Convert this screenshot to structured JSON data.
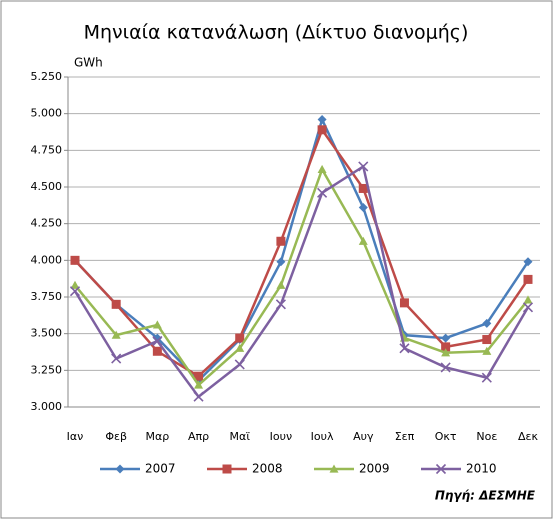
{
  "chart_data": {
    "type": "line",
    "title": "Μηνιαία κατανάλωση (Δίκτυο διανομής)",
    "y_label": "GWh",
    "source": "Πηγή: ΔΕΣΜΗΕ",
    "categories": [
      "Ιαν",
      "Φεβ",
      "Μαρ",
      "Απρ",
      "Μαϊ",
      "Ιουν",
      "Ιουλ",
      "Αυγ",
      "Σεπ",
      "Οκτ",
      "Νοε",
      "Δεκ"
    ],
    "series": [
      {
        "name": "2007",
        "color": "#4a7ebb",
        "marker": "diamond",
        "values": [
          4.0,
          3.7,
          3.47,
          3.18,
          3.46,
          3.99,
          4.96,
          4.36,
          3.49,
          3.47,
          3.57,
          3.99
        ]
      },
      {
        "name": "2008",
        "color": "#be4b48",
        "marker": "square",
        "values": [
          4.0,
          3.7,
          3.38,
          3.21,
          3.47,
          4.13,
          4.89,
          4.49,
          3.71,
          3.41,
          3.46,
          3.87
        ]
      },
      {
        "name": "2009",
        "color": "#98b954",
        "marker": "triangle",
        "values": [
          3.83,
          3.49,
          3.56,
          3.15,
          3.4,
          3.83,
          4.62,
          4.13,
          3.47,
          3.37,
          3.38,
          3.73
        ]
      },
      {
        "name": "2010",
        "color": "#7d60a0",
        "marker": "x",
        "values": [
          3.79,
          3.33,
          3.45,
          3.07,
          3.29,
          3.7,
          4.46,
          4.64,
          3.4,
          3.27,
          3.2,
          3.68
        ]
      }
    ],
    "ylim": [
      3.0,
      5.25
    ],
    "yticks": [
      {
        "value": 3.0,
        "label": "3.000"
      },
      {
        "value": 3.25,
        "label": "3.250"
      },
      {
        "value": 3.5,
        "label": "3.500"
      },
      {
        "value": 3.75,
        "label": "3.750"
      },
      {
        "value": 4.0,
        "label": "4.000"
      },
      {
        "value": 4.25,
        "label": "4.250"
      },
      {
        "value": 4.5,
        "label": "4.500"
      },
      {
        "value": 4.75,
        "label": "4.750"
      },
      {
        "value": 5.0,
        "label": "5.000"
      },
      {
        "value": 5.25,
        "label": "5.250"
      }
    ],
    "grid": true,
    "legend": "bottom"
  }
}
